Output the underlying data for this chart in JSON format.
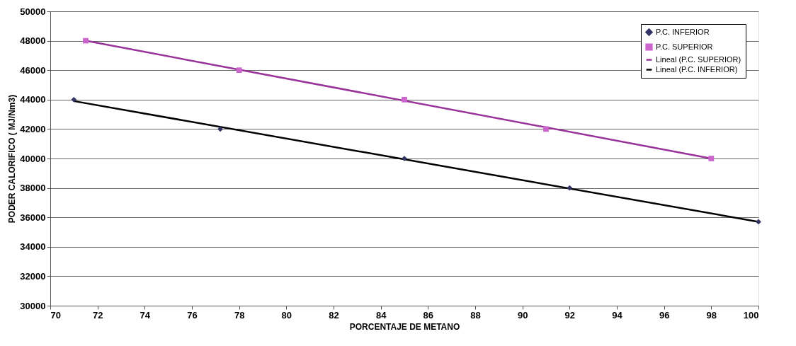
{
  "chart_data": {
    "type": "scatter",
    "xlabel": "PORCENTAJE DE METANO",
    "ylabel": "PODER CALORIFICO ( MJ/Nm3)",
    "xlim": [
      70,
      100
    ],
    "xticks": [
      70,
      72,
      74,
      76,
      78,
      80,
      82,
      84,
      86,
      88,
      90,
      92,
      94,
      96,
      98,
      100
    ],
    "ylim": [
      30000,
      50000
    ],
    "yticks": [
      30000,
      32000,
      34000,
      36000,
      38000,
      40000,
      42000,
      44000,
      46000,
      48000,
      50000
    ],
    "grid": "y",
    "legend": "top right",
    "line_style": "solid",
    "series": [
      {
        "name": "P.C. INFERIOR",
        "marker": "diamond",
        "color": "#333366",
        "x": [
          71,
          77.2,
          85,
          92,
          100
        ],
        "values": [
          44000,
          42000,
          40000,
          38000,
          35700
        ]
      },
      {
        "name": "P.C. SUPERIOR",
        "marker": "square",
        "color": "#cc66cc",
        "x": [
          71.5,
          78,
          85,
          91,
          98
        ],
        "values": [
          48000,
          46000,
          44000,
          42000,
          40000
        ]
      },
      {
        "name": "Lineal (P.C. SUPERIOR)",
        "type": "line",
        "marker": "none",
        "color": "#993399",
        "x": [
          71.5,
          98
        ],
        "values": [
          48000,
          40000
        ]
      },
      {
        "name": "Lineal (P.C. INFERIOR)",
        "type": "line",
        "marker": "none",
        "color": "#000000",
        "x": [
          71,
          100
        ],
        "values": [
          43900,
          35700
        ]
      }
    ]
  }
}
